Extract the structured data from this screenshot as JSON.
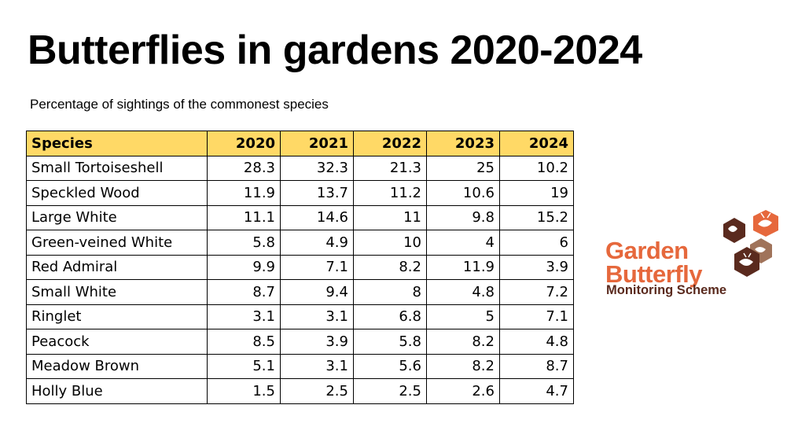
{
  "title": "Butterflies in gardens 2020-2024",
  "subtitle": "Percentage of sightings of the commonest species",
  "chart_data": {
    "type": "table",
    "columns": [
      "Species",
      "2020",
      "2021",
      "2022",
      "2023",
      "2024"
    ],
    "rows": [
      [
        "Small Tortoiseshell",
        "28.3",
        "32.3",
        "21.3",
        "25",
        "10.2"
      ],
      [
        "Speckled Wood",
        "11.9",
        "13.7",
        "11.2",
        "10.6",
        "19"
      ],
      [
        "Large White",
        "11.1",
        "14.6",
        "11",
        "9.8",
        "15.2"
      ],
      [
        "Green-veined White",
        "5.8",
        "4.9",
        "10",
        "4",
        "6"
      ],
      [
        "Red Admiral",
        "9.9",
        "7.1",
        "8.2",
        "11.9",
        "3.9"
      ],
      [
        "Small White",
        "8.7",
        "9.4",
        "8",
        "4.8",
        "7.2"
      ],
      [
        "Ringlet",
        "3.1",
        "3.1",
        "6.8",
        "5",
        "7.1"
      ],
      [
        "Peacock",
        "8.5",
        "3.9",
        "5.8",
        "8.2",
        "4.8"
      ],
      [
        "Meadow Brown",
        "5.1",
        "3.1",
        "5.6",
        "8.2",
        "8.7"
      ],
      [
        "Holly Blue",
        "1.5",
        "2.5",
        "2.5",
        "2.6",
        "4.7"
      ]
    ],
    "header_color": "#FFD966"
  },
  "logo": {
    "line1": "Garden",
    "line2": "Butterfly",
    "line3": "Monitoring Scheme",
    "colors": {
      "orange": "#E6683C",
      "brown": "#5A2A1E",
      "tan": "#A0735A"
    },
    "icon": "butterfly-hexagons-icon"
  }
}
